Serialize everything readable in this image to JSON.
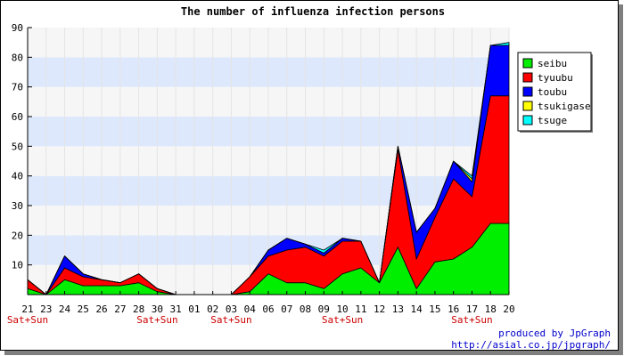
{
  "chart_data": {
    "type": "area",
    "stacked": true,
    "title": "The number of influenza infection persons",
    "xlabel": "",
    "ylabel": "",
    "ylim": [
      0,
      90
    ],
    "yticks": [
      10,
      20,
      30,
      40,
      50,
      60,
      70,
      80,
      90
    ],
    "grid": "horizontal bands",
    "legend_position": "right",
    "categories": [
      "21",
      "23",
      "24",
      "25",
      "26",
      "27",
      "28",
      "30",
      "31",
      "01",
      "02",
      "03",
      "04",
      "06",
      "07",
      "08",
      "09",
      "10",
      "11",
      "12",
      "13",
      "14",
      "15",
      "16",
      "17",
      "18",
      "20"
    ],
    "weekend_label": "Sat+Sun",
    "weekend_indices": [
      0,
      7,
      11,
      17,
      24
    ],
    "series": [
      {
        "name": "seibu",
        "color": "#00ee00",
        "values": [
          2,
          0,
          5,
          3,
          3,
          3,
          4,
          1,
          0,
          0,
          0,
          0,
          1,
          7,
          4,
          4,
          2,
          7,
          9,
          4,
          16,
          2,
          11,
          12,
          16,
          24,
          24
        ]
      },
      {
        "name": "tyuubu",
        "color": "#ff0000",
        "values": [
          3,
          0,
          4,
          3,
          2,
          1,
          3,
          1,
          0,
          0,
          0,
          0,
          5,
          6,
          11,
          12,
          11,
          11,
          9,
          0,
          33,
          10,
          15,
          27,
          17,
          43,
          43
        ]
      },
      {
        "name": "toubu",
        "color": "#0000ff",
        "values": [
          0,
          0,
          4,
          1,
          0,
          0,
          0,
          0,
          0,
          0,
          0,
          0,
          0,
          2,
          4,
          1,
          1,
          1,
          0,
          0,
          1,
          9,
          3,
          6,
          5,
          17,
          17
        ]
      },
      {
        "name": "tsukigase",
        "color": "#ffff00",
        "values": [
          0,
          0,
          0,
          0,
          0,
          0,
          0,
          0,
          0,
          0,
          0,
          0,
          0,
          0,
          0,
          0,
          0,
          0,
          0,
          0,
          0,
          0,
          0,
          0,
          1,
          0,
          0
        ]
      },
      {
        "name": "tsuge",
        "color": "#00ffff",
        "values": [
          0,
          0,
          0,
          0,
          0,
          0,
          0,
          0,
          0,
          0,
          0,
          0,
          0,
          0,
          0,
          0,
          1,
          0,
          0,
          0,
          0,
          0,
          0,
          0,
          1,
          0,
          1
        ]
      }
    ]
  },
  "credits": {
    "line1": "produced by JpGraph",
    "line2": "http://asial.co.jp/jpgraph/"
  }
}
